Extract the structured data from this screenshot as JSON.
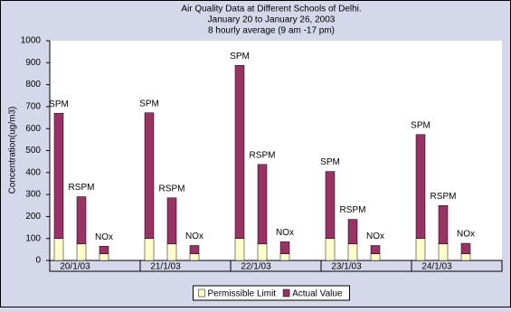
{
  "chart_data": {
    "type": "stacked-bar",
    "title": "Air Quality Data at  Different Schools of Delhi.",
    "subtitle": [
      "January 20 to January 26, 2003",
      "8 hourly average (9 am -17 pm)"
    ],
    "y_label": "Concentration(ug/m3)",
    "categories": [
      "20/1/03",
      "21/1/03",
      "22/1/03",
      "23/1/03",
      "24/1/03"
    ],
    "bar_labels": [
      "SPM",
      "RSPM",
      "NOx"
    ],
    "series": [
      {
        "name": "Permissible Limit",
        "color": "#ffffcc",
        "values": [
          [
            100,
            75,
            30
          ],
          [
            100,
            75,
            30
          ],
          [
            100,
            75,
            30
          ],
          [
            100,
            75,
            30
          ],
          [
            100,
            75,
            30
          ]
        ]
      },
      {
        "name": "Actual Value",
        "color": "#993366",
        "values": [
          [
            570,
            215,
            35
          ],
          [
            572,
            210,
            38
          ],
          [
            788,
            362,
            55
          ],
          [
            305,
            112,
            38
          ],
          [
            473,
            175,
            48
          ]
        ]
      }
    ],
    "ylim": [
      0,
      1000
    ],
    "yticks": [
      0,
      100,
      200,
      300,
      400,
      500,
      600,
      700,
      800,
      900,
      1000
    ],
    "legend": "bottom"
  }
}
